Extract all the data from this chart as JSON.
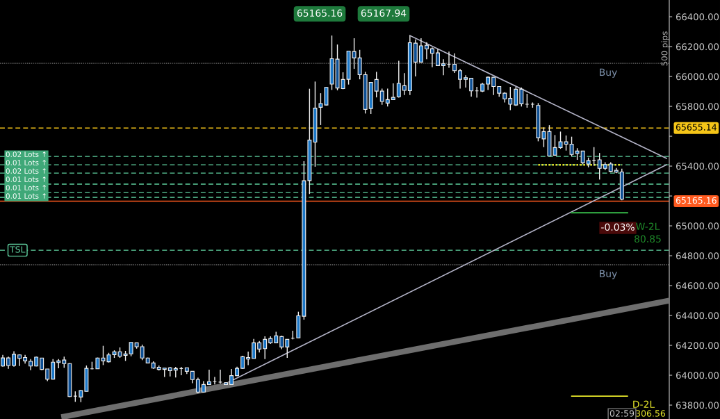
{
  "chart_data": {
    "type": "candlestick",
    "categories": [
      null,
      null,
      null,
      null,
      null,
      null,
      null,
      null,
      null,
      null,
      null,
      null,
      null,
      null,
      null,
      null,
      null,
      null,
      null,
      null,
      null,
      null,
      null,
      null,
      null,
      null,
      null,
      null,
      null,
      null,
      null,
      null,
      null,
      null,
      null,
      null,
      null,
      null,
      null,
      null,
      null,
      null,
      null,
      null,
      null,
      null,
      null,
      null,
      null,
      null,
      null,
      null,
      null,
      null,
      null,
      null,
      null,
      null,
      null,
      null,
      null,
      null,
      null,
      null,
      null,
      null,
      null,
      null,
      null,
      null,
      null,
      null,
      null,
      null,
      null,
      null,
      null,
      null,
      null,
      null,
      null,
      null,
      null,
      null,
      null,
      null,
      null,
      null,
      null,
      null,
      null,
      null,
      null,
      null,
      null,
      null,
      null,
      null,
      null,
      null,
      null,
      null,
      null,
      null,
      null,
      null,
      null,
      null,
      null,
      null,
      null,
      null,
      null,
      null,
      null,
      null,
      null,
      null,
      null,
      null
    ],
    "ohlc": [
      [
        64062,
        64136,
        64057,
        64116
      ],
      [
        64116,
        64124,
        64043,
        64065
      ],
      [
        64065,
        64161,
        64057,
        64140
      ],
      [
        64136,
        64140,
        64062,
        64113
      ],
      [
        64119,
        64136,
        64078,
        64096
      ],
      [
        64093,
        64108,
        64034,
        64062
      ],
      [
        64062,
        64124,
        64059,
        64121
      ],
      [
        64115,
        64115,
        64034,
        64039
      ],
      [
        64042,
        64042,
        63961,
        63974
      ],
      [
        63974,
        64108,
        63974,
        64087
      ],
      [
        64085,
        64108,
        64046,
        64096
      ],
      [
        64102,
        64124,
        64050,
        64078
      ],
      [
        64078,
        64081,
        63854,
        63857
      ],
      [
        63860,
        63892,
        63822,
        63860
      ],
      [
        63854,
        63902,
        63820,
        63898
      ],
      [
        63892,
        64065,
        63892,
        64046
      ],
      [
        64043,
        64090,
        64039,
        64043
      ],
      [
        64043,
        64118,
        64043,
        64115
      ],
      [
        64115,
        64197,
        64068,
        64096
      ],
      [
        64090,
        64150,
        64085,
        64136
      ],
      [
        64138,
        64167,
        64116,
        64157
      ],
      [
        64157,
        64186,
        64116,
        64127
      ],
      [
        64133,
        64163,
        64096,
        64143
      ],
      [
        64143,
        64220,
        64127,
        64220
      ],
      [
        64217,
        64217,
        64178,
        64191
      ],
      [
        64191,
        64205,
        64101,
        64115
      ],
      [
        64115,
        64118,
        64079,
        64082
      ],
      [
        64082,
        64093,
        64043,
        64048
      ],
      [
        64053,
        64065,
        64031,
        64039
      ],
      [
        64039,
        64048,
        63988,
        64048
      ],
      [
        64050,
        64056,
        63992,
        64031
      ],
      [
        64034,
        64056,
        63985,
        64045
      ],
      [
        64045,
        64056,
        64000,
        64045
      ],
      [
        64050,
        64050,
        64008,
        64026
      ],
      [
        64026,
        64026,
        63946,
        63971
      ],
      [
        63971,
        63984,
        63879,
        63887
      ],
      [
        63887,
        63961,
        63884,
        63938
      ],
      [
        63938,
        64037,
        63938,
        63957
      ],
      [
        63957,
        63988,
        63938,
        63957
      ],
      [
        63954,
        64037,
        63944,
        63954
      ],
      [
        63950,
        63954,
        63935,
        63938
      ],
      [
        63938,
        64042,
        63938,
        63997
      ],
      [
        63997,
        64057,
        63994,
        64046
      ],
      [
        64046,
        64130,
        64043,
        64124
      ],
      [
        64119,
        64158,
        64067,
        64108
      ],
      [
        64112,
        64243,
        64112,
        64217
      ],
      [
        64217,
        64229,
        64152,
        64175
      ],
      [
        64178,
        64260,
        64108,
        64240
      ],
      [
        64246,
        64260,
        64209,
        64217
      ],
      [
        64217,
        64291,
        64217,
        64264
      ],
      [
        64259,
        64264,
        64175,
        64189
      ],
      [
        64189,
        64240,
        64116,
        64240
      ],
      [
        64248,
        64298,
        64240,
        64248
      ],
      [
        64250,
        64425,
        64250,
        64398
      ],
      [
        64395,
        65433,
        64372,
        65302
      ],
      [
        65303,
        65918,
        65213,
        65574
      ],
      [
        65561,
        65966,
        65396,
        65788
      ],
      [
        65794,
        65888,
        65675,
        65819
      ],
      [
        65809,
        65930,
        65806,
        65927
      ],
      [
        65949,
        66274,
        65910,
        66119
      ],
      [
        66116,
        66214,
        65907,
        65923
      ],
      [
        65919,
        66028,
        65915,
        65980
      ],
      [
        65981,
        66170,
        65946,
        66170
      ],
      [
        66167,
        66256,
        66051,
        66124
      ],
      [
        66124,
        66178,
        65981,
        66012
      ],
      [
        66012,
        66031,
        65752,
        65780
      ],
      [
        65786,
        65960,
        65749,
        65960
      ],
      [
        65980,
        66031,
        65860,
        65902
      ],
      [
        65902,
        65919,
        65811,
        65833
      ],
      [
        65822,
        65919,
        65799,
        65845
      ],
      [
        65845,
        65954,
        65845,
        65860
      ],
      [
        65864,
        66105,
        65858,
        65954
      ],
      [
        65938,
        66022,
        65876,
        65907
      ],
      [
        65905,
        66274,
        65876,
        66226
      ],
      [
        66223,
        66248,
        66000,
        66096
      ],
      [
        66096,
        66256,
        66093,
        66205
      ],
      [
        66209,
        66229,
        66116,
        66185
      ],
      [
        66186,
        66194,
        66062,
        66155
      ],
      [
        66158,
        66183,
        66070,
        66073
      ],
      [
        66073,
        66116,
        66008,
        66085
      ],
      [
        66082,
        66167,
        66059,
        66082
      ],
      [
        66082,
        66155,
        66023,
        66039
      ],
      [
        66039,
        66050,
        65919,
        65981
      ],
      [
        65981,
        66008,
        65926,
        65992
      ],
      [
        65988,
        65988,
        65865,
        65904
      ],
      [
        65904,
        65930,
        65858,
        65904
      ],
      [
        65902,
        65957,
        65896,
        65949
      ],
      [
        65949,
        66000,
        65910,
        65995
      ],
      [
        65995,
        65995,
        65876,
        65933
      ],
      [
        65933,
        65933,
        65864,
        65888
      ],
      [
        65888,
        65895,
        65826,
        65850
      ],
      [
        65853,
        65930,
        65775,
        65814
      ],
      [
        65809,
        65930,
        65803,
        65915
      ],
      [
        65915,
        65926,
        65799,
        65817
      ],
      [
        65814,
        65884,
        65791,
        65814
      ],
      [
        65814,
        65826,
        65791,
        65814
      ],
      [
        65806,
        65822,
        65566,
        65589
      ],
      [
        65582,
        65659,
        65527,
        65631
      ],
      [
        65631,
        65674,
        65468,
        65468
      ],
      [
        65473,
        65608,
        65473,
        65524
      ],
      [
        65524,
        65631,
        65516,
        65563
      ],
      [
        65563,
        65605,
        65504,
        65547
      ],
      [
        65547,
        65597,
        65465,
        65478
      ],
      [
        65484,
        65520,
        65442,
        65501
      ],
      [
        65501,
        65501,
        65414,
        65423
      ],
      [
        65414,
        65457,
        65392,
        65437
      ],
      [
        65439,
        65527,
        65403,
        65439
      ],
      [
        65442,
        65488,
        65310,
        65385
      ],
      [
        65385,
        65426,
        65372,
        65411
      ],
      [
        65414,
        65426,
        65361,
        65365
      ],
      [
        65372,
        65388,
        65352,
        65360
      ],
      [
        65361,
        65383,
        65171,
        65178
      ],
      null,
      null,
      null,
      null,
      null,
      null,
      null,
      null
    ],
    "series": [
      {
        "type": "line",
        "color": "#b4b4c8",
        "values": [
          null,
          null,
          null,
          null,
          null,
          null,
          null,
          null,
          null,
          null,
          null,
          null,
          null,
          null,
          null,
          null,
          null,
          null,
          null,
          null,
          null,
          null,
          null,
          null,
          null,
          null,
          null,
          null,
          null,
          null,
          null,
          null,
          null,
          null,
          null,
          null,
          null,
          null,
          null,
          null,
          null,
          null,
          null,
          null,
          null,
          null,
          null,
          null,
          null,
          null,
          null,
          null,
          null,
          null,
          null,
          null,
          null,
          null,
          null,
          null,
          null,
          null,
          null,
          null,
          null,
          null,
          null,
          null,
          null,
          null,
          null,
          null,
          null,
          66274,
          null,
          null,
          null,
          null,
          null,
          null,
          null,
          null,
          null,
          null,
          null,
          null,
          null,
          null,
          null,
          null,
          null,
          null,
          null,
          null,
          null,
          null,
          null,
          null,
          null,
          null,
          null,
          null,
          null,
          null,
          null,
          null,
          null,
          null,
          null,
          null,
          null,
          null,
          null,
          null,
          null,
          null,
          null,
          null,
          null,
          65452
        ]
      },
      {
        "type": "line",
        "color": "#b4b4c8",
        "values": [
          null,
          null,
          null,
          null,
          null,
          null,
          null,
          null,
          null,
          null,
          null,
          null,
          null,
          null,
          null,
          null,
          null,
          null,
          null,
          null,
          null,
          null,
          null,
          null,
          null,
          null,
          null,
          null,
          null,
          null,
          null,
          null,
          null,
          null,
          null,
          null,
          null,
          null,
          null,
          63926,
          null,
          null,
          null,
          null,
          null,
          null,
          null,
          null,
          null,
          null,
          null,
          null,
          null,
          null,
          null,
          null,
          null,
          null,
          null,
          null,
          null,
          null,
          null,
          null,
          null,
          null,
          null,
          null,
          null,
          null,
          null,
          null,
          null,
          null,
          null,
          null,
          null,
          null,
          null,
          null,
          null,
          null,
          null,
          null,
          null,
          null,
          null,
          null,
          null,
          null,
          null,
          null,
          null,
          null,
          null,
          null,
          null,
          null,
          null,
          null,
          null,
          null,
          null,
          null,
          null,
          null,
          null,
          null,
          null,
          null,
          null,
          null,
          null,
          null,
          null,
          null,
          null,
          null,
          null,
          65409
        ]
      },
      {
        "type": "line",
        "color": "#6e6e6e",
        "values": [
          null,
          null,
          null,
          null,
          null,
          null,
          null,
          null,
          null,
          null,
          null,
          63723,
          null,
          null,
          null,
          null,
          null,
          null,
          null,
          null,
          null,
          null,
          null,
          null,
          null,
          null,
          null,
          null,
          null,
          null,
          null,
          null,
          null,
          null,
          null,
          null,
          null,
          null,
          null,
          null,
          null,
          null,
          null,
          null,
          null,
          null,
          null,
          null,
          null,
          null,
          null,
          null,
          null,
          null,
          null,
          null,
          null,
          null,
          null,
          null,
          null,
          null,
          null,
          null,
          null,
          null,
          null,
          null,
          null,
          null,
          null,
          null,
          null,
          null,
          null,
          null,
          null,
          null,
          null,
          null,
          null,
          null,
          null,
          null,
          null,
          null,
          null,
          null,
          null,
          null,
          null,
          null,
          null,
          null,
          null,
          null,
          null,
          null,
          null,
          null,
          null,
          null,
          null,
          null,
          null,
          null,
          null,
          null,
          null,
          null,
          null,
          null,
          null,
          null,
          null,
          null,
          null,
          null,
          null,
          64496
        ]
      },
      {
        "type": "line",
        "color": "#e6e62a",
        "line_style": "dotted",
        "values": [
          null,
          null,
          null,
          null,
          null,
          null,
          null,
          null,
          null,
          null,
          null,
          null,
          null,
          null,
          null,
          null,
          null,
          null,
          null,
          null,
          null,
          null,
          null,
          null,
          null,
          null,
          null,
          null,
          null,
          null,
          null,
          null,
          null,
          null,
          null,
          null,
          null,
          null,
          null,
          null,
          null,
          null,
          null,
          null,
          null,
          null,
          null,
          null,
          null,
          null,
          null,
          null,
          null,
          null,
          null,
          null,
          null,
          null,
          null,
          null,
          null,
          null,
          null,
          null,
          null,
          null,
          null,
          null,
          null,
          null,
          null,
          null,
          null,
          null,
          null,
          null,
          null,
          null,
          null,
          null,
          null,
          null,
          null,
          null,
          null,
          null,
          null,
          null,
          null,
          null,
          null,
          null,
          null,
          null,
          null,
          null,
          65408,
          null,
          null,
          null,
          null,
          null,
          null,
          null,
          null,
          null,
          null,
          null,
          null,
          null,
          null,
          65408,
          null,
          null,
          null,
          null,
          null,
          null,
          null,
          null
        ]
      },
      {
        "type": "line",
        "color": "#2e9e3e",
        "values": [
          null,
          null,
          null,
          null,
          null,
          null,
          null,
          null,
          null,
          null,
          null,
          null,
          null,
          null,
          null,
          null,
          null,
          null,
          null,
          null,
          null,
          null,
          null,
          null,
          null,
          null,
          null,
          null,
          null,
          null,
          null,
          null,
          null,
          null,
          null,
          null,
          null,
          null,
          null,
          null,
          null,
          null,
          null,
          null,
          null,
          null,
          null,
          null,
          null,
          null,
          null,
          null,
          null,
          null,
          null,
          null,
          null,
          null,
          null,
          null,
          null,
          null,
          null,
          null,
          null,
          null,
          null,
          null,
          null,
          null,
          null,
          null,
          null,
          null,
          null,
          null,
          null,
          null,
          null,
          null,
          null,
          null,
          null,
          null,
          null,
          null,
          null,
          null,
          null,
          null,
          null,
          null,
          null,
          null,
          null,
          null,
          null,
          null,
          null,
          null,
          null,
          null,
          65088,
          null,
          null,
          null,
          null,
          null,
          null,
          null,
          null,
          null,
          65088,
          null,
          null,
          null,
          null,
          null,
          null,
          null
        ]
      },
      {
        "type": "line",
        "color": "#e6e62a",
        "values": [
          null,
          null,
          null,
          null,
          null,
          null,
          null,
          null,
          null,
          null,
          null,
          null,
          null,
          null,
          null,
          null,
          null,
          null,
          null,
          null,
          null,
          null,
          null,
          null,
          null,
          null,
          null,
          null,
          null,
          null,
          null,
          null,
          null,
          null,
          null,
          null,
          null,
          null,
          null,
          null,
          null,
          null,
          null,
          null,
          null,
          null,
          null,
          null,
          null,
          null,
          null,
          null,
          null,
          null,
          null,
          null,
          null,
          null,
          null,
          null,
          null,
          null,
          null,
          null,
          null,
          null,
          null,
          null,
          null,
          null,
          null,
          null,
          null,
          null,
          null,
          null,
          null,
          null,
          null,
          null,
          null,
          null,
          null,
          null,
          null,
          null,
          null,
          null,
          null,
          null,
          null,
          null,
          null,
          null,
          null,
          null,
          null,
          null,
          null,
          null,
          null,
          null,
          63860,
          null,
          null,
          null,
          null,
          null,
          null,
          null,
          null,
          null,
          63860,
          null,
          null,
          null,
          null,
          null,
          null,
          null
        ]
      }
    ],
    "ylim": [
      63707,
      66512
    ],
    "yticks": [
      {
        "value": 63800,
        "label": "63800.00"
      },
      {
        "value": 64000,
        "label": "64000.00"
      },
      {
        "value": 64200,
        "label": "64200.00"
      },
      {
        "value": 64400,
        "label": "64400.00"
      },
      {
        "value": 64600,
        "label": "64600.00"
      },
      {
        "value": 64800,
        "label": "64800.00"
      },
      {
        "value": 65000,
        "label": "65000.00"
      },
      {
        "value": 65200,
        "label": null
      },
      {
        "value": 65400,
        "label": "65400.00"
      },
      {
        "value": 65600,
        "label": null
      },
      {
        "value": 65800,
        "label": "65800.00"
      },
      {
        "value": 66000,
        "label": "66000.00"
      },
      {
        "value": 66200,
        "label": "66200.00"
      },
      {
        "value": 66400,
        "label": "66400.00"
      }
    ],
    "tick_labels": "y",
    "ref_lines": [
      {
        "axis": "y",
        "value": 66088,
        "label": "Buy",
        "color": "#707070",
        "line_style": "dotted"
      },
      {
        "axis": "y",
        "value": 65655.14,
        "label": "65655.14",
        "color": "#f5c518",
        "line_style": "dashed"
      },
      {
        "axis": "y",
        "value": 65465,
        "label": "0.02 Lots ↑",
        "color": "#5fcf9f",
        "line_style": "dashed"
      },
      {
        "axis": "y",
        "value": 65409,
        "label": "0.01 Lots ↑",
        "color": "#5fcf9f",
        "line_style": "dashed"
      },
      {
        "axis": "y",
        "value": 65353,
        "label": "0.02 Lots ↑",
        "color": "#5fcf9f",
        "line_style": "dashed"
      },
      {
        "axis": "y",
        "value": 65279,
        "label": "0.01 Lots ↑",
        "color": "#5fcf9f",
        "line_style": "dashed"
      },
      {
        "axis": "y",
        "value": 65223,
        "label": "0.01 Lots ↑",
        "color": "#5fcf9f",
        "line_style": "dashed"
      },
      {
        "axis": "y",
        "value": 65191,
        "label": "0.01 Lots ↑",
        "color": "#5fcf9f",
        "line_style": "dashed"
      },
      {
        "axis": "y",
        "value": 65165.16,
        "label": "65165.16",
        "color": "#ff5a1f",
        "line_style": "solid"
      },
      {
        "axis": "y",
        "value": 64837,
        "label": "TSL",
        "color": "#5fcf9f",
        "line_style": "dashed"
      },
      {
        "axis": "y",
        "value": 64740,
        "label": "Buy",
        "color": "#707070",
        "line_style": "dotted"
      }
    ],
    "annotations": [
      "65165.16",
      "65167.94",
      "500 pips",
      "-0.03%",
      "W-2L",
      "80.85",
      "D-2L",
      "306.56",
      "02:59"
    ],
    "legend": false,
    "grid": false
  }
}
